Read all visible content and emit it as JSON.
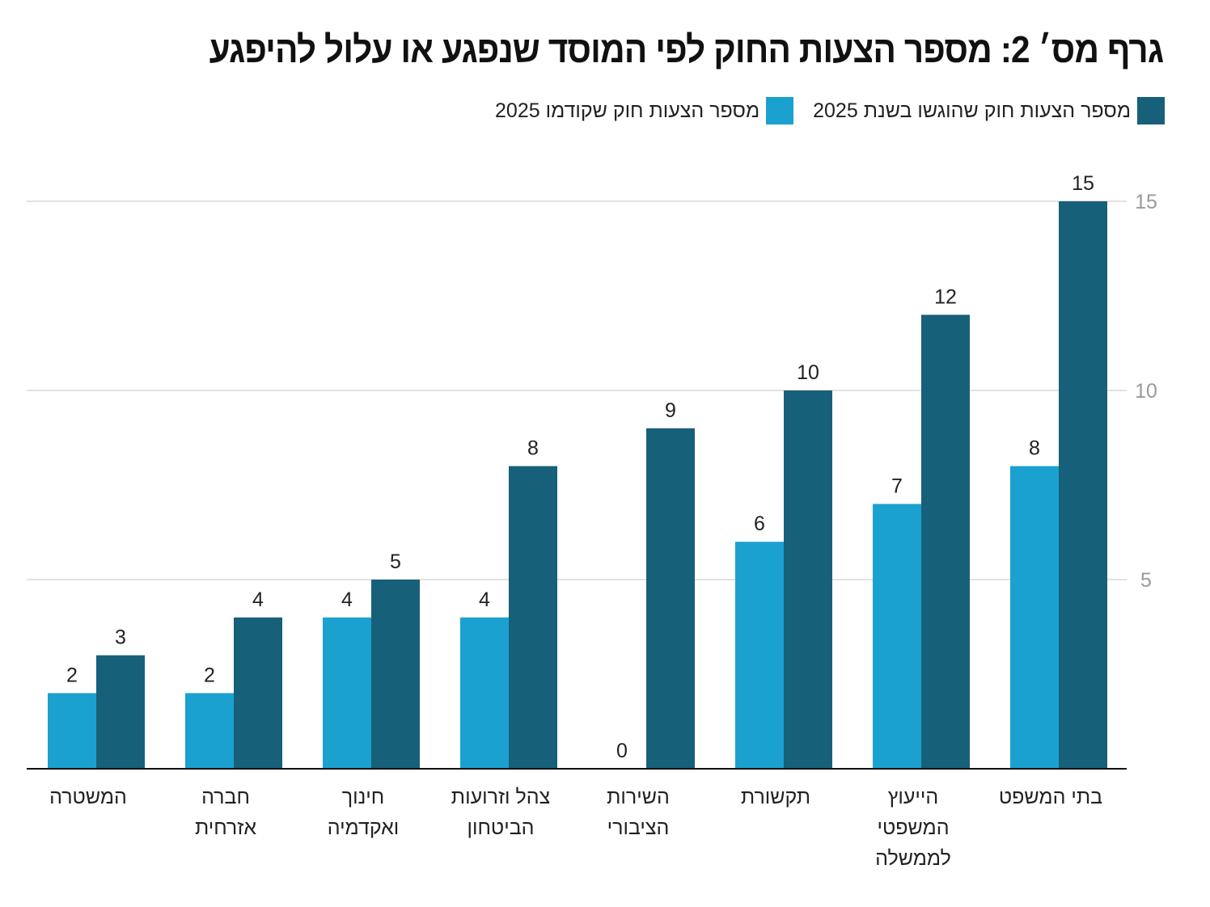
{
  "chart_data": {
    "type": "bar",
    "title": "גרף מס׳ 2: מספר הצעות החוק לפי המוסד שנפגע או עלול להיפגע",
    "xlabel": "",
    "ylabel": "",
    "ylim": [
      0,
      15
    ],
    "yticks": [
      5,
      10,
      15
    ],
    "grid": true,
    "legend_position": "top-right",
    "direction": "rtl",
    "categories": [
      [
        "בתי המשפט"
      ],
      [
        "הייעוץ",
        "המשפטי",
        "לממשלה"
      ],
      [
        "תקשורת"
      ],
      [
        "השירות",
        "הציבורי"
      ],
      [
        "צהל וזרועות",
        "הביטחון"
      ],
      [
        "חינוך",
        "ואקדמיה"
      ],
      [
        "חברה",
        "אזרחית"
      ],
      [
        "המשטרה"
      ]
    ],
    "series": [
      {
        "name": "מספר הצעות חוק שהוגשו בשנת 2025",
        "color": "#17607a",
        "values": [
          15,
          12,
          10,
          9,
          8,
          5,
          4,
          3
        ]
      },
      {
        "name": "מספר הצעות חוק שקודמו 2025",
        "color": "#1ba1cf",
        "values": [
          8,
          7,
          6,
          0,
          4,
          4,
          2,
          2
        ]
      }
    ]
  }
}
